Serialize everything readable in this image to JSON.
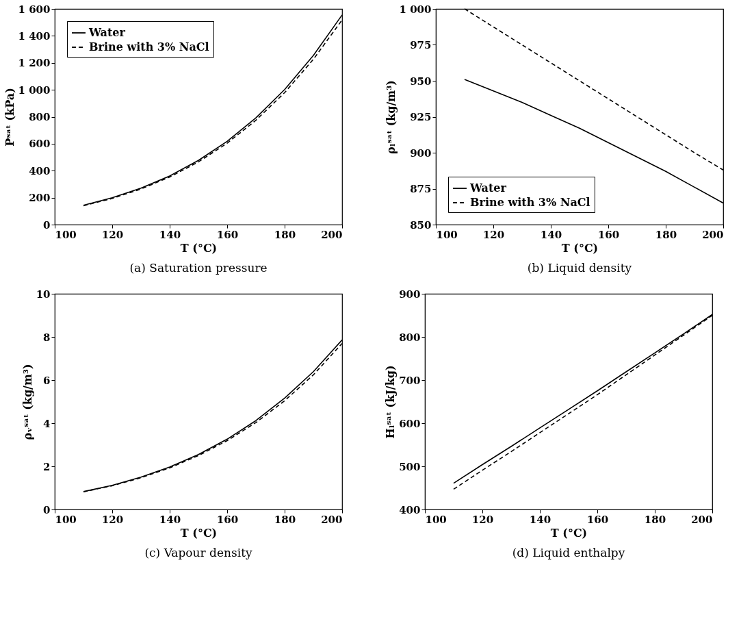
{
  "chart_data": [
    {
      "type": "line",
      "xlabel": "T (°C)",
      "ylabel": "Pˢᵃᵗ (kPa)",
      "annotations": [
        "(a) Saturation pressure"
      ],
      "legend": "top left",
      "grid": false,
      "xlim": [
        100,
        200
      ],
      "xticks": [
        100,
        120,
        140,
        160,
        180,
        200
      ],
      "ylim": [
        0,
        1600
      ],
      "yticks": [
        0,
        200,
        400,
        600,
        800,
        {
          "value": 1000,
          "label": "1 000"
        },
        {
          "value": 1200,
          "label": "1 200"
        },
        {
          "value": 1400,
          "label": "1 400"
        },
        {
          "value": 1600,
          "label": "1 600"
        }
      ],
      "x": [
        110,
        120,
        130,
        140,
        150,
        160,
        170,
        180,
        190,
        200
      ],
      "series": [
        {
          "name": "Water",
          "color": "#000000",
          "line_style": "solid",
          "values": [
            143,
            199,
            270,
            361,
            476,
            618,
            792,
            1002,
            1255,
            1555
          ]
        },
        {
          "name": "Brine with 3% NaCl",
          "color": "#000000",
          "line_style": "dashed",
          "values": [
            140,
            194,
            264,
            353,
            465,
            604,
            774,
            979,
            1226,
            1518
          ]
        }
      ]
    },
    {
      "type": "line",
      "xlabel": "T (°C)",
      "ylabel": "ρₗˢᵃᵗ (kg/m³)",
      "annotations": [
        "(b) Liquid density"
      ],
      "legend": "bottom left",
      "grid": false,
      "xlim": [
        100,
        200
      ],
      "xticks": [
        100,
        120,
        140,
        160,
        180,
        200
      ],
      "ylim": [
        850,
        1000
      ],
      "yticks": [
        850,
        875,
        900,
        925,
        950,
        975,
        {
          "value": 1000,
          "label": "1 000"
        }
      ],
      "x": [
        110,
        120,
        130,
        140,
        150,
        160,
        170,
        180,
        190,
        200
      ],
      "series": [
        {
          "name": "Water",
          "color": "#000000",
          "line_style": "solid",
          "values": [
            951,
            943,
            935,
            926,
            917,
            907,
            897,
            887,
            876,
            865
          ]
        },
        {
          "name": "Brine with 3% NaCl",
          "color": "#000000",
          "line_style": "dashed",
          "values": [
            1000,
            987.5,
            975,
            962.5,
            950,
            937.5,
            925,
            912.5,
            900,
            888
          ]
        }
      ]
    },
    {
      "type": "line",
      "xlabel": "T (°C)",
      "ylabel": "ρᵥˢᵃᵗ (kg/m³)",
      "annotations": [
        "(c) Vapour density"
      ],
      "legend": "top left",
      "grid": false,
      "xlim": [
        100,
        200
      ],
      "xticks": [
        100,
        120,
        140,
        160,
        180,
        200
      ],
      "ylim": [
        0,
        10
      ],
      "yticks": [
        0,
        2,
        4,
        6,
        8,
        10
      ],
      "x": [
        110,
        120,
        130,
        140,
        150,
        160,
        170,
        180,
        190,
        200
      ],
      "series": [
        {
          "name": "Water",
          "color": "#000000",
          "line_style": "solid",
          "values": [
            0.83,
            1.12,
            1.5,
            1.97,
            2.55,
            3.26,
            4.12,
            5.16,
            6.39,
            7.86
          ]
        },
        {
          "name": "Brine with 3% NaCl",
          "color": "#000000",
          "line_style": "dashed",
          "values": [
            0.82,
            1.1,
            1.47,
            1.93,
            2.5,
            3.19,
            4.03,
            5.04,
            6.24,
            7.7
          ]
        }
      ]
    },
    {
      "type": "line",
      "xlabel": "T (°C)",
      "ylabel": "Hₗˢᵃᵗ (kJ/kg)",
      "annotations": [
        "(d) Liquid enthalpy"
      ],
      "legend": "top left",
      "grid": false,
      "xlim": [
        100,
        200
      ],
      "xticks": [
        100,
        120,
        140,
        160,
        180,
        200
      ],
      "ylim": [
        400,
        900
      ],
      "yticks": [
        400,
        500,
        600,
        700,
        800,
        900
      ],
      "x": [
        110,
        120,
        130,
        140,
        150,
        160,
        170,
        180,
        190,
        200
      ],
      "series": [
        {
          "name": "Water",
          "color": "#000000",
          "line_style": "solid",
          "values": [
            461,
            504,
            546,
            589,
            632,
            675,
            719,
            763,
            807,
            852
          ]
        },
        {
          "name": "Brine with 3% NaCl",
          "color": "#000000",
          "line_style": "dashed",
          "values": [
            447,
            491,
            534,
            578,
            622,
            666,
            712,
            758,
            804,
            850
          ]
        }
      ]
    }
  ]
}
